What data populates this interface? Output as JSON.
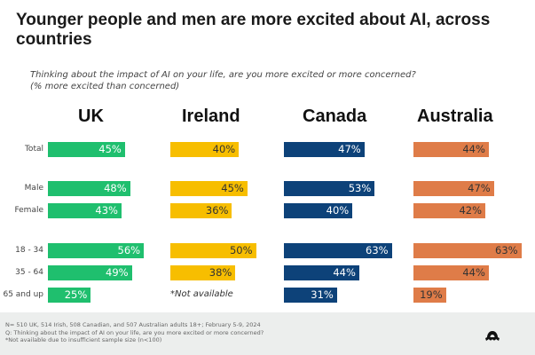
{
  "title": "Younger people and men are more excited about AI, across countries",
  "subtitle_lines": [
    "Thinking about the impact of AI on your life, are you more excited or more concerned?",
    "(% more excited than concerned)"
  ],
  "chart_data": {
    "type": "bar",
    "orientation": "horizontal",
    "categories": [
      "Total",
      "Male",
      "Female",
      "18 - 34",
      "35 - 64",
      "65 and up"
    ],
    "series": [
      {
        "name": "UK",
        "color": "#1fbf6e",
        "text_color": "#ffffff",
        "values": [
          45,
          48,
          43,
          56,
          49,
          25
        ],
        "labels": [
          "45%",
          "48%",
          "43%",
          "56%",
          "49%",
          "25%"
        ]
      },
      {
        "name": "Ireland",
        "color": "#f7be00",
        "text_color": "#333333",
        "values": [
          40,
          45,
          36,
          50,
          38,
          null
        ],
        "labels": [
          "40%",
          "45%",
          "36%",
          "50%",
          "38%",
          "*Not available"
        ]
      },
      {
        "name": "Canada",
        "color": "#0d4279",
        "text_color": "#ffffff",
        "values": [
          47,
          53,
          40,
          63,
          44,
          31
        ],
        "labels": [
          "47%",
          "53%",
          "40%",
          "63%",
          "44%",
          "31%"
        ]
      },
      {
        "name": "Australia",
        "color": "#df7c48",
        "text_color": "#333333",
        "values": [
          44,
          47,
          42,
          63,
          44,
          19
        ],
        "labels": [
          "44%",
          "47%",
          "42%",
          "63%",
          "44%",
          "19%"
        ]
      }
    ],
    "grid": false,
    "legend": "none"
  },
  "footer": {
    "lines": [
      "N= 510 UK, 514 Irish, 508 Canadian, and 507 Australian adults 18+; February 5-9, 2024",
      "Q: Thinking about the impact of AI on your life, are you more excited or more concerned?",
      "*Not available due to insufficient sample size (n<100)"
    ]
  },
  "logo": "brand-logo"
}
